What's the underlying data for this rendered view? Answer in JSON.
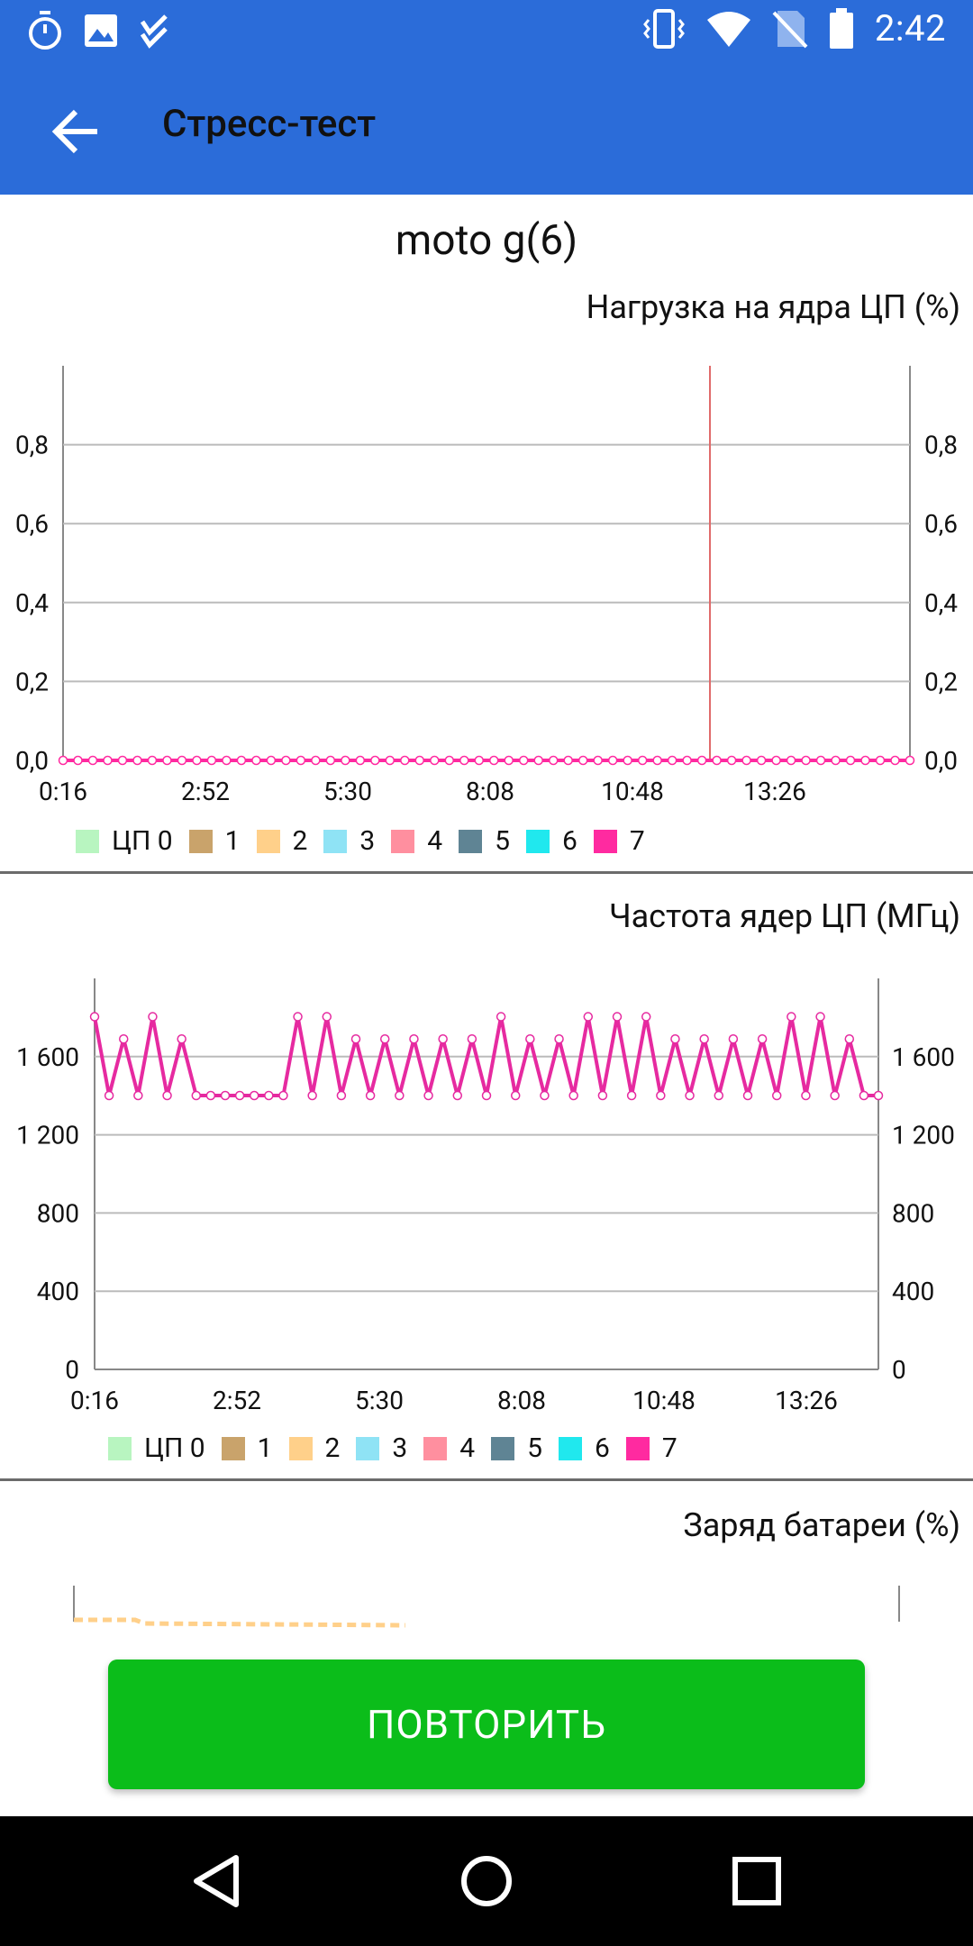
{
  "status_bar": {
    "time": "2:42",
    "left_icons": [
      "timer-icon",
      "image-icon",
      "checklist-icon"
    ],
    "right_icons": [
      "vibrate-icon",
      "wifi-icon",
      "no-sim-icon",
      "battery-icon"
    ]
  },
  "app_bar": {
    "title": "Стресс-тест",
    "back_icon": "arrow-left-icon"
  },
  "device": {
    "name": "moto g(6)"
  },
  "sections": {
    "cpu_load": {
      "title": "Нагрузка на ядра ЦП (%)"
    },
    "cpu_freq": {
      "title": "Частота ядер ЦП (МГц)"
    },
    "battery": {
      "title": "Заряд батареи (%)"
    }
  },
  "legend": {
    "items": [
      {
        "label": "ЦП 0",
        "color": "#b8f5c0"
      },
      {
        "label": "1",
        "color": "#c9a36b"
      },
      {
        "label": "2",
        "color": "#ffd08a"
      },
      {
        "label": "3",
        "color": "#8fe3f5"
      },
      {
        "label": "4",
        "color": "#ff8f9f"
      },
      {
        "label": "5",
        "color": "#5f8494"
      },
      {
        "label": "6",
        "color": "#20e8ee"
      },
      {
        "label": "7",
        "color": "#ff2aa0"
      }
    ]
  },
  "chart_data": [
    {
      "type": "line",
      "title": "Нагрузка на ядра ЦП (%)",
      "x_ticks": [
        "0:16",
        "2:52",
        "5:30",
        "8:08",
        "10:48",
        "13:26"
      ],
      "y_ticks": [
        "0,0",
        "0,2",
        "0,4",
        "0,6",
        "0,8"
      ],
      "ylim": [
        0,
        1
      ],
      "series": [
        {
          "name": "7",
          "color": "#ff2aa0",
          "values": [
            0,
            0,
            0,
            0,
            0,
            0,
            0,
            0,
            0,
            0,
            0,
            0,
            0,
            0,
            0,
            0,
            0,
            0,
            0,
            0,
            0,
            0,
            0,
            0,
            0,
            0,
            0,
            0,
            0,
            0,
            0,
            0,
            0,
            0,
            0,
            0,
            0,
            0,
            0,
            0,
            0,
            0,
            0,
            0,
            0,
            0,
            0,
            0,
            0,
            0,
            0,
            0,
            0,
            0,
            0,
            0,
            0,
            0
          ]
        }
      ],
      "marker_line_color": "#e06b6b"
    },
    {
      "type": "line",
      "title": "Частота ядер ЦП (МГц)",
      "x_ticks": [
        "0:16",
        "2:52",
        "5:30",
        "8:08",
        "10:48",
        "13:26"
      ],
      "y_ticks": [
        "0",
        "400",
        "800",
        "1 200",
        "1 600"
      ],
      "ylim": [
        0,
        2000
      ],
      "series": [
        {
          "name": "7",
          "color": "#e62aa0",
          "values": [
            1804,
            1401,
            1690,
            1401,
            1804,
            1401,
            1690,
            1401,
            1401,
            1401,
            1401,
            1401,
            1401,
            1401,
            1804,
            1401,
            1804,
            1401,
            1690,
            1401,
            1690,
            1401,
            1690,
            1401,
            1690,
            1401,
            1690,
            1401,
            1804,
            1401,
            1690,
            1401,
            1690,
            1401,
            1804,
            1401,
            1804,
            1401,
            1804,
            1401,
            1690,
            1401,
            1690,
            1401,
            1690,
            1401,
            1690,
            1401,
            1804,
            1401,
            1804,
            1401,
            1690,
            1401,
            1401
          ]
        }
      ]
    },
    {
      "type": "line",
      "title": "Заряд батареи (%)",
      "series": [
        {
          "name": "battery",
          "color": "#ffd08a",
          "values": []
        }
      ]
    }
  ],
  "button": {
    "label": "ПОВТОРИТЬ"
  },
  "nav_bar": {
    "icons": [
      "back-triangle-icon",
      "home-circle-icon",
      "recents-square-icon"
    ]
  }
}
